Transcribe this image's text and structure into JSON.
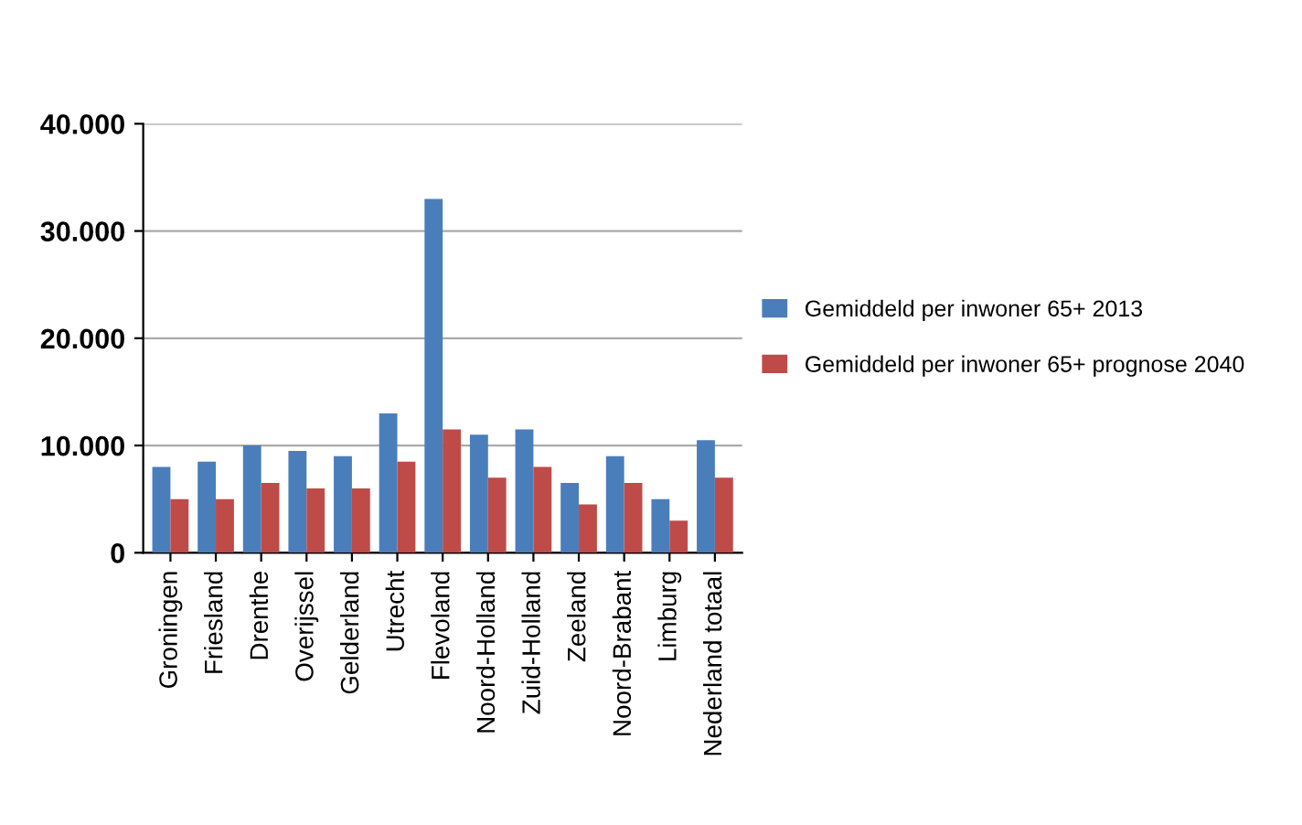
{
  "chart_data": {
    "type": "bar",
    "categories": [
      "Groningen",
      "Friesland",
      "Drenthe",
      "Overijssel",
      "Gelderland",
      "Utrecht",
      "Flevoland",
      "Noord-Holland",
      "Zuid-Holland",
      "Zeeland",
      "Noord-Brabant",
      "Limburg",
      "Nederland totaal"
    ],
    "series": [
      {
        "name": "Gemiddeld per inwoner 65+ 2013",
        "color": "#4a7ebb",
        "values": [
          8000,
          8500,
          10000,
          9500,
          9000,
          13000,
          33000,
          11000,
          11500,
          6500,
          9000,
          5000,
          10500
        ]
      },
      {
        "name": "Gemiddeld per inwoner 65+ prognose 2040",
        "color": "#be4b48",
        "values": [
          5000,
          5000,
          6500,
          6000,
          6000,
          8500,
          11500,
          7000,
          8000,
          4500,
          6500,
          3000,
          7000
        ]
      }
    ],
    "ylim": [
      0,
      40000
    ],
    "yticks": [
      {
        "value": 0,
        "label": "0"
      },
      {
        "value": 10000,
        "label": "10.000"
      },
      {
        "value": 20000,
        "label": "20.000"
      },
      {
        "value": 30000,
        "label": "30.000"
      },
      {
        "value": 40000,
        "label": "40.000"
      }
    ],
    "grid": "y",
    "legend": "right"
  }
}
